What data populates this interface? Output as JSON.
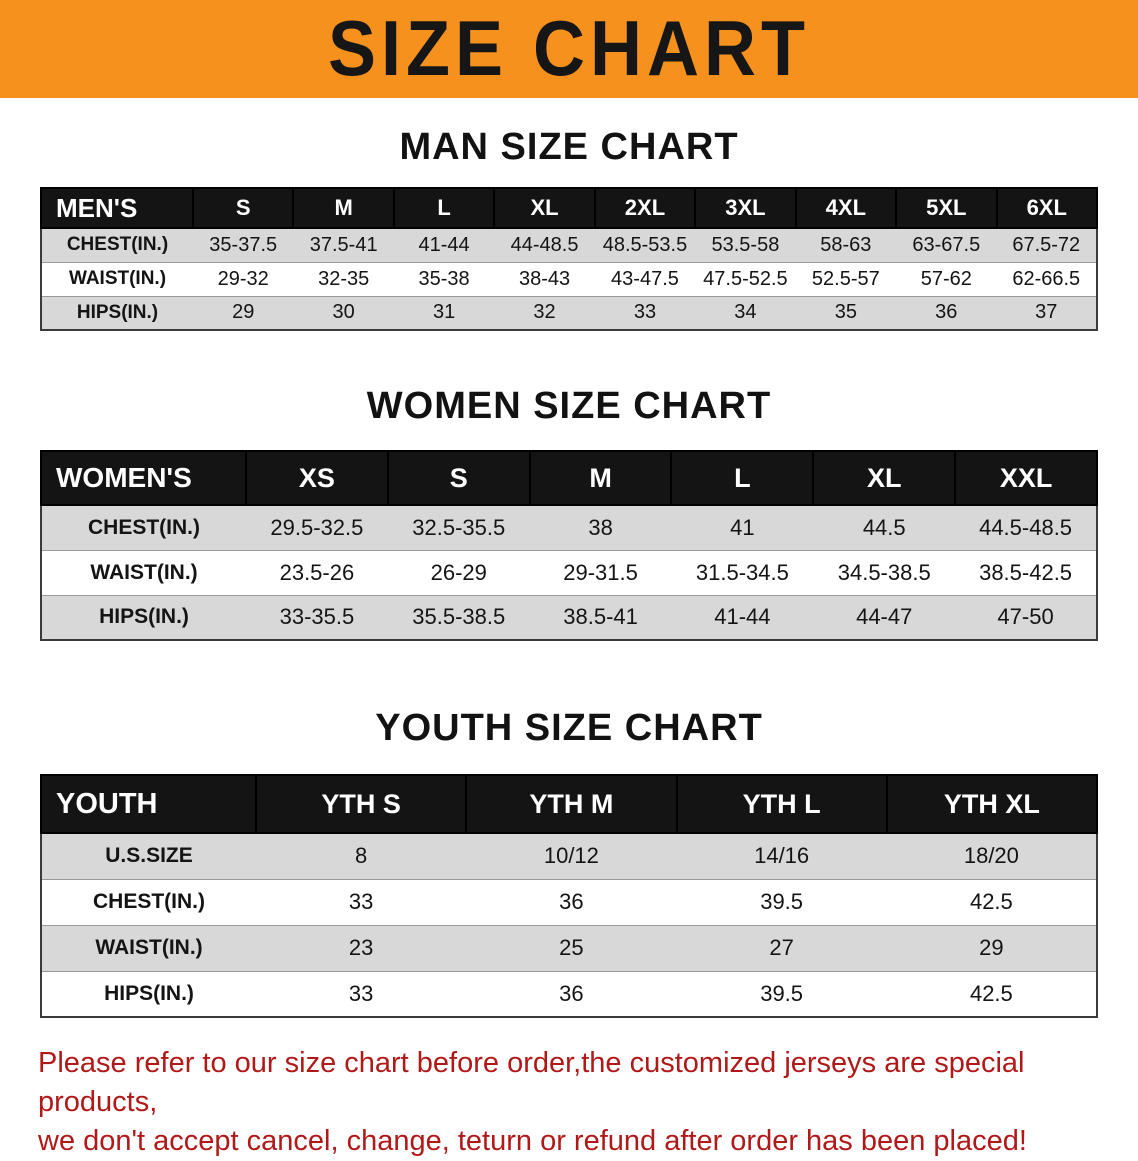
{
  "banner": {
    "title": "SIZE CHART"
  },
  "colors": {
    "banner_bg": "#f6911e",
    "table_header_bg": "#141414",
    "row_stripe": "#d8d8d8",
    "notice_text": "#b11919"
  },
  "sections": [
    {
      "heading": "MAN SIZE CHART",
      "header": [
        "MEN'S",
        "S",
        "M",
        "L",
        "XL",
        "2XL",
        "3XL",
        "4XL",
        "5XL",
        "6XL"
      ],
      "rows": [
        [
          "CHEST(IN.)",
          "35-37.5",
          "37.5-41",
          "41-44",
          "44-48.5",
          "48.5-53.5",
          "53.5-58",
          "58-63",
          "63-67.5",
          "67.5-72"
        ],
        [
          "WAIST(IN.)",
          "29-32",
          "32-35",
          "35-38",
          "38-43",
          "43-47.5",
          "47.5-52.5",
          "52.5-57",
          "57-62",
          "62-66.5"
        ],
        [
          "HIPS(IN.)",
          "29",
          "30",
          "31",
          "32",
          "33",
          "34",
          "35",
          "36",
          "37"
        ]
      ]
    },
    {
      "heading": "WOMEN SIZE CHART",
      "header": [
        "WOMEN'S",
        "XS",
        "S",
        "M",
        "L",
        "XL",
        "XXL"
      ],
      "rows": [
        [
          "CHEST(IN.)",
          "29.5-32.5",
          "32.5-35.5",
          "38",
          "41",
          "44.5",
          "44.5-48.5"
        ],
        [
          "WAIST(IN.)",
          "23.5-26",
          "26-29",
          "29-31.5",
          "31.5-34.5",
          "34.5-38.5",
          "38.5-42.5"
        ],
        [
          "HIPS(IN.)",
          "33-35.5",
          "35.5-38.5",
          "38.5-41",
          "41-44",
          "44-47",
          "47-50"
        ]
      ]
    },
    {
      "heading": "YOUTH SIZE CHART",
      "header": [
        "YOUTH",
        "YTH S",
        "YTH M",
        "YTH L",
        "YTH XL"
      ],
      "rows": [
        [
          "U.S.SIZE",
          "8",
          "10/12",
          "14/16",
          "18/20"
        ],
        [
          "CHEST(IN.)",
          "33",
          "36",
          "39.5",
          "42.5"
        ],
        [
          "WAIST(IN.)",
          "23",
          "25",
          "27",
          "29"
        ],
        [
          "HIPS(IN.)",
          "33",
          "36",
          "39.5",
          "42.5"
        ]
      ]
    }
  ],
  "footer": {
    "line1": "Please refer to our size chart before order,the customized jerseys are special products,",
    "line2": "we don't accept cancel, change, teturn or refund after order has been placed!"
  }
}
